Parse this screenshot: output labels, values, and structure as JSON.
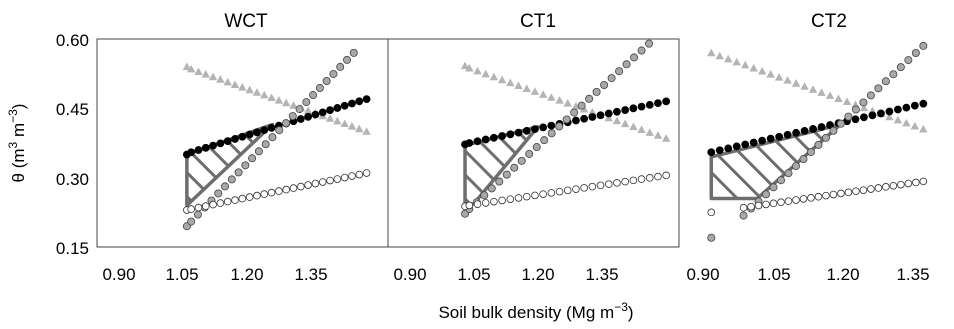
{
  "figure": {
    "xlabel_main": "Soil bulk density (Mg m",
    "xlabel_sup": "−3",
    "xlabel_end": ")",
    "ylabel_main": "θ (m",
    "ylabel_sup1": "3",
    "ylabel_mid": " m",
    "ylabel_sup2": "−3",
    "ylabel_end": ")"
  },
  "colors": {
    "field_capacity": "#000000",
    "aeration_porosity": "#b4b4b4",
    "wilting_point": "#ffffff",
    "penetration_resistance": "#a8a8a8",
    "zone_outline": "#6e6e6e"
  },
  "chart_data": [
    {
      "type": "scatter",
      "title": "WCT",
      "xlim": [
        0.82,
        1.5
      ],
      "ylim": [
        0.15,
        0.6
      ],
      "xticks": [
        "0.90",
        "1.05",
        "1.20",
        "1.35"
      ],
      "yticks": [
        "0.15",
        "0.30",
        "0.45",
        "0.60"
      ],
      "series": [
        {
          "marker": "triangle",
          "color": "#b4b4b4",
          "x": [
            1.03,
            1.04,
            1.45
          ],
          "y": [
            0.54,
            0.535,
            0.4
          ]
        },
        {
          "marker": "circle-filled",
          "color": "#000000",
          "x": [
            1.03,
            1.04,
            1.45
          ],
          "y": [
            0.35,
            0.355,
            0.47
          ]
        },
        {
          "marker": "circle-grey",
          "color": "#a8a8a8",
          "x": [
            1.03,
            1.04,
            1.42
          ],
          "y": [
            0.195,
            0.205,
            0.57
          ]
        },
        {
          "marker": "circle-open",
          "color": "#ffffff",
          "x": [
            1.03,
            1.04,
            1.45
          ],
          "y": [
            0.23,
            0.232,
            0.31
          ]
        }
      ],
      "zone": [
        [
          1.03,
          0.35
        ],
        [
          1.23,
          0.415
        ],
        [
          1.03,
          0.24
        ]
      ]
    },
    {
      "type": "scatter",
      "title": "CT1",
      "xlim": [
        0.82,
        1.5
      ],
      "ylim": [
        0.15,
        0.6
      ],
      "xticks": [
        "0.90",
        "1.05",
        "1.20",
        "1.35"
      ],
      "yticks": [],
      "series": [
        {
          "marker": "triangle",
          "color": "#b4b4b4",
          "x": [
            1.0,
            1.01,
            1.47
          ],
          "y": [
            0.542,
            0.537,
            0.385
          ]
        },
        {
          "marker": "circle-filled",
          "color": "#000000",
          "x": [
            1.0,
            1.01,
            1.47
          ],
          "y": [
            0.372,
            0.375,
            0.465
          ]
        },
        {
          "marker": "circle-grey",
          "color": "#a8a8a8",
          "x": [
            1.0,
            1.01,
            1.43
          ],
          "y": [
            0.222,
            0.232,
            0.59
          ]
        },
        {
          "marker": "circle-open",
          "color": "#ffffff",
          "x": [
            1.0,
            1.01,
            1.47
          ],
          "y": [
            0.238,
            0.24,
            0.305
          ]
        }
      ],
      "zone": [
        [
          1.0,
          0.37
        ],
        [
          1.17,
          0.41
        ],
        [
          1.02,
          0.243
        ],
        [
          1.0,
          0.243
        ]
      ]
    },
    {
      "type": "scatter",
      "title": "CT2",
      "xlim": [
        0.86,
        1.45
      ],
      "ylim": [
        0.15,
        0.6
      ],
      "xticks": [
        "0.90",
        "1.05",
        "1.20",
        "1.35"
      ],
      "yticks": [],
      "series": [
        {
          "marker": "triangle",
          "color": "#b4b4b4",
          "x": [
            0.93,
            1.39
          ],
          "y": [
            0.57,
            0.405
          ]
        },
        {
          "marker": "circle-filled",
          "color": "#000000",
          "x": [
            0.93,
            1.39
          ],
          "y": [
            0.355,
            0.46
          ]
        },
        {
          "marker": "circle-grey",
          "color": "#a8a8a8",
          "x": [
            0.93,
            1.0,
            1.39
          ],
          "y": [
            0.17,
            0.218,
            0.585
          ]
        },
        {
          "marker": "circle-open",
          "color": "#ffffff",
          "x": [
            0.93,
            1.0,
            1.39
          ],
          "y": [
            0.225,
            0.235,
            0.292
          ]
        }
      ],
      "zone": [
        [
          0.93,
          0.345
        ],
        [
          1.21,
          0.415
        ],
        [
          1.03,
          0.255
        ],
        [
          0.93,
          0.255
        ]
      ]
    }
  ]
}
